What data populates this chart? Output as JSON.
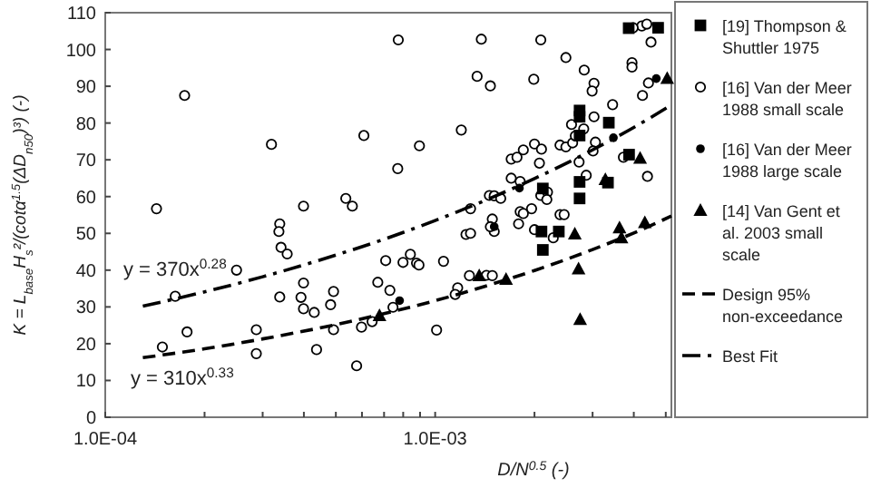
{
  "chart_data": {
    "type": "scatter",
    "xlabel": "D/N$^{0.5}$  (-)",
    "ylabel": "K = L$_{base}$H$_{s}$²/(cotα$^{1.5}$(ΔD$_{n50}$)³) (-)",
    "log": "x",
    "xlim": [
      0.0001,
      0.0052
    ],
    "ylim": [
      0,
      110
    ],
    "xticks": [
      {
        "value": 0.0001,
        "label": "1.0E-04"
      },
      {
        "value": 0.0002,
        "label": null
      },
      {
        "value": 0.0003,
        "label": null
      },
      {
        "value": 0.0004,
        "label": null
      },
      {
        "value": 0.0005,
        "label": null
      },
      {
        "value": 0.0006,
        "label": null
      },
      {
        "value": 0.0007,
        "label": null
      },
      {
        "value": 0.0008,
        "label": null
      },
      {
        "value": 0.0009,
        "label": null
      },
      {
        "value": 0.001,
        "label": "1.0E-03"
      },
      {
        "value": 0.002,
        "label": null
      },
      {
        "value": 0.003,
        "label": null
      },
      {
        "value": 0.004,
        "label": null
      },
      {
        "value": 0.005,
        "label": null
      }
    ],
    "yticks": [
      0,
      10,
      20,
      30,
      40,
      50,
      60,
      70,
      80,
      90,
      100,
      110
    ],
    "grid": false,
    "legend": "right",
    "annotations": [
      "y = 370x$^{0.28}$",
      "y = 310x$^{0.33}$"
    ],
    "series": [
      {
        "name": "[19] Thompson & Shuttler 1975",
        "color": "#000000",
        "marker": "square",
        "x": [
          0.00386,
          0.00474,
          0.00274,
          0.00274,
          0.00336,
          0.00274,
          0.00212,
          0.00274,
          0.00274,
          0.00334,
          0.00387,
          0.0021,
          0.00237,
          0.00212
        ],
        "values": [
          105.8,
          105.9,
          83.4,
          81.7,
          80.1,
          76.6,
          62.2,
          64,
          59.5,
          63.8,
          71.4,
          50.5,
          50.5,
          45.5
        ]
      },
      {
        "name": "[16] Van der Meer 1988 small scale",
        "color": "#ffffff",
        "marker": "circle",
        "x": [
          0.000143,
          0.000174,
          0.000149,
          0.000163,
          0.000177,
          0.00025,
          0.000287,
          0.000287,
          0.000319,
          0.000338,
          0.000336,
          0.000341,
          0.000356,
          0.000338,
          0.000399,
          0.000399,
          0.000392,
          0.000399,
          0.00043,
          0.000437,
          0.000482,
          0.000492,
          0.000492,
          0.000536,
          0.000561,
          0.000578,
          0.000598,
          0.000608,
          0.00067,
          0.000708,
          0.000729,
          0.000745,
          0.000644,
          0.000773,
          0.00077,
          0.00138,
          0.00209,
          0.00134,
          0.00147,
          0.00199,
          0.00249,
          0.00283,
          0.00303,
          0.00299,
          0.00303,
          0.00345,
          0.00395,
          0.00395,
          0.00425,
          0.00443,
          0.00423,
          0.00438,
          0.00451,
          0.00398,
          0.0012,
          0.000896,
          0.000799,
          0.000841,
          0.000878,
          0.000893,
          0.00106,
          0.00101,
          0.00117,
          0.00115,
          0.00127,
          0.00143,
          0.00149,
          0.00124,
          0.00128,
          0.00128,
          0.00146,
          0.00151,
          0.00149,
          0.00151,
          0.00147,
          0.00158,
          0.0017,
          0.00177,
          0.00185,
          0.002,
          0.0021,
          0.00207,
          0.0017,
          0.00181,
          0.00181,
          0.00185,
          0.00179,
          0.00196,
          0.002,
          0.00209,
          0.00219,
          0.00218,
          0.00239,
          0.00249,
          0.00261,
          0.00266,
          0.00259,
          0.00273,
          0.00287,
          0.00306,
          0.00301,
          0.00239,
          0.00246,
          0.00228,
          0.00282,
          0.00372,
          0.0044
        ],
        "values": [
          56.7,
          87.5,
          19.1,
          32.9,
          23.2,
          40,
          23.8,
          17.3,
          74.2,
          52.6,
          50.5,
          46.2,
          44.4,
          32.7,
          57.4,
          36.5,
          32.6,
          29.5,
          28.5,
          18.4,
          30.6,
          34.2,
          23.8,
          59.5,
          57.4,
          14,
          24.5,
          76.6,
          36.7,
          42.6,
          34.5,
          29.9,
          26,
          102.6,
          67.6,
          102.8,
          102.6,
          92.7,
          90.1,
          91.9,
          97.8,
          94.4,
          90.8,
          88.7,
          81.7,
          85,
          96.4,
          95.2,
          87.5,
          90.9,
          106.4,
          106.9,
          102,
          105.9,
          78.1,
          73.8,
          42.1,
          44.3,
          41.9,
          41.4,
          42.4,
          23.7,
          35.2,
          33.4,
          38.5,
          38.6,
          38.5,
          49.7,
          50,
          56.7,
          60.3,
          60.2,
          53.9,
          50.5,
          51.8,
          59.5,
          70.2,
          70.7,
          72.7,
          74.3,
          72.9,
          69.1,
          65,
          64.1,
          55.9,
          55.4,
          52.6,
          56.7,
          51,
          60.3,
          61.2,
          59.2,
          74,
          73.5,
          74.6,
          76.5,
          79.6,
          69.4,
          65.8,
          74.8,
          72.4,
          55.1,
          55.1,
          48.8,
          78.4,
          70.7,
          65.5
        ]
      },
      {
        "name": "[16] Van der Meer 1988 large scale",
        "color": "#000000",
        "marker": "circle",
        "x": [
          0.0018,
          0.00151,
          0.00078,
          0.00347,
          0.00468
        ],
        "values": [
          62.3,
          51.8,
          31.7,
          76,
          92.1
        ]
      },
      {
        "name": "[14] Van Gent et al. 2003 small scale",
        "color": "#000000",
        "marker": "triangle",
        "x": [
          0.00505,
          0.00418,
          0.00328,
          0.00265,
          0.00272,
          0.00275,
          0.00362,
          0.00367,
          0.00432,
          0.00136,
          0.00164,
          0.000678
        ],
        "values": [
          92.1,
          70.4,
          64.6,
          49.8,
          40.3,
          26.6,
          51.5,
          48.8,
          52.9,
          38.5,
          37.5,
          27.6
        ]
      },
      {
        "name": "Design 95% non-exceedance",
        "type": "line",
        "color": "#000000",
        "line_style": "dashed",
        "marker": "none",
        "x": [
          0.00013,
          0.0002,
          0.0003,
          0.0005,
          0.0007,
          0.001,
          0.0015,
          0.002,
          0.003,
          0.004,
          0.0052
        ],
        "values": [
          16.2,
          18.6,
          21.3,
          25.2,
          28.2,
          31.7,
          36.3,
          39.9,
          45.6,
          50.1,
          54.7
        ]
      },
      {
        "name": "Best Fit",
        "type": "line",
        "color": "#000000",
        "line_style": "dashdot",
        "marker": "none",
        "x": [
          0.00013,
          0.0002,
          0.0003,
          0.0005,
          0.0007,
          0.001,
          0.0015,
          0.002,
          0.003,
          0.004,
          0.0052
        ],
        "values": [
          30.2,
          34.1,
          38.2,
          44.1,
          48.4,
          53.5,
          59.9,
          64.9,
          72.7,
          78.8,
          84.9
        ]
      }
    ]
  }
}
